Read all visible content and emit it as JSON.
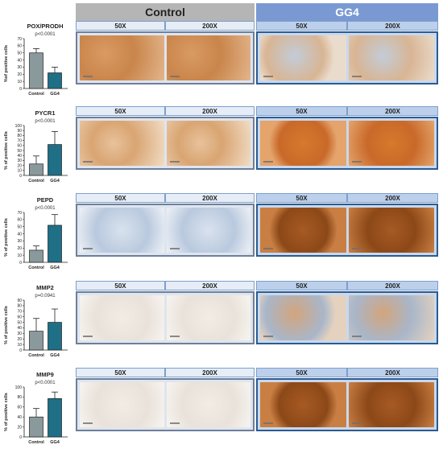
{
  "headers": {
    "control": "Control",
    "gg4": "GG4"
  },
  "magnifications": [
    "50X",
    "200X"
  ],
  "colors": {
    "control_bar": "#8a999c",
    "gg4_bar": "#1f6f86",
    "control_header": "#b5b5b5",
    "gg4_header": "#7a99d3",
    "stain_brown": "#c8773b",
    "stain_blue": "#8fa9c9"
  },
  "panels": [
    {
      "marker": "POX/PRODH",
      "pvalue": "p<0.0001",
      "control_stain": "medium-brown",
      "gg4_stain": "light-brown-with-blue"
    },
    {
      "marker": "PYCR1",
      "pvalue": "p<0.0001",
      "control_stain": "light-brown",
      "gg4_stain": "strong-brown"
    },
    {
      "marker": "PEPD",
      "pvalue": "p<0.0001",
      "control_stain": "blue",
      "gg4_stain": "dark-brown"
    },
    {
      "marker": "MMP2",
      "pvalue": "p=0.0941",
      "control_stain": "very-light",
      "gg4_stain": "mixed-brown-blue"
    },
    {
      "marker": "MMP9",
      "pvalue": "p<0.0001",
      "control_stain": "very-light",
      "gg4_stain": "dark-brown"
    }
  ],
  "chart_data": [
    {
      "type": "bar",
      "title": "POX/PRODH",
      "subtitle": "p<0.0001",
      "categories": [
        "Control",
        "GG4"
      ],
      "values": [
        50,
        22
      ],
      "errors": [
        6,
        8
      ],
      "ylabel": "%of positive cells",
      "ylim": [
        0,
        70
      ],
      "yticks": [
        0,
        10,
        20,
        30,
        40,
        50,
        60,
        70
      ]
    },
    {
      "type": "bar",
      "title": "PYCR1",
      "subtitle": "p<0.0001",
      "categories": [
        "Control",
        "GG4"
      ],
      "values": [
        23,
        62
      ],
      "errors": [
        16,
        26
      ],
      "ylabel": "% of positive cells",
      "ylim": [
        0,
        100
      ],
      "yticks": [
        0,
        10,
        20,
        30,
        40,
        50,
        60,
        70,
        80,
        90,
        100
      ]
    },
    {
      "type": "bar",
      "title": "PEPD",
      "subtitle": "p<0.0001",
      "categories": [
        "Control",
        "GG4"
      ],
      "values": [
        17,
        52
      ],
      "errors": [
        6,
        15
      ],
      "ylabel": "% of positive cells",
      "ylim": [
        0,
        70
      ],
      "yticks": [
        0,
        10,
        20,
        30,
        40,
        50,
        60,
        70
      ]
    },
    {
      "type": "bar",
      "title": "MMP2",
      "subtitle": "p=0.0941",
      "categories": [
        "Control",
        "GG4"
      ],
      "values": [
        34,
        50
      ],
      "errors": [
        23,
        24
      ],
      "ylabel": "% of positive cells",
      "ylim": [
        0,
        90
      ],
      "yticks": [
        0,
        10,
        20,
        30,
        40,
        50,
        60,
        70,
        80,
        90
      ]
    },
    {
      "type": "bar",
      "title": "MMP9",
      "subtitle": "p<0.0001",
      "categories": [
        "Control",
        "GG4"
      ],
      "values": [
        40,
        77
      ],
      "errors": [
        17,
        13
      ],
      "ylabel": "% of positive cells",
      "ylim": [
        0,
        100
      ],
      "yticks": [
        0,
        20,
        40,
        60,
        80,
        100
      ]
    }
  ]
}
